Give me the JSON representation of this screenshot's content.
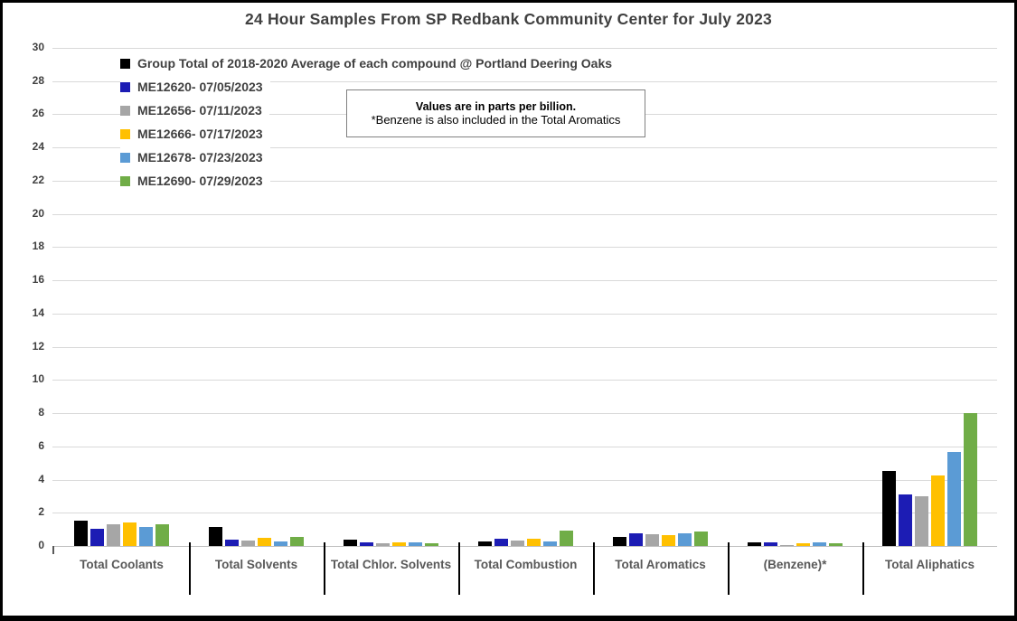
{
  "title": "24 Hour Samples From SP Redbank Community Center for July 2023",
  "note": {
    "line1": "Values are in parts per billion.",
    "line2": "*Benzene is also included in the Total Aromatics"
  },
  "colors": {
    "gridline": "#D9D9D9",
    "axis_baseline": "#BFBFBF",
    "axis_text": "#404040",
    "category_label_text": "#595959",
    "category_separator": "#000000",
    "title_text": "#404040"
  },
  "chart_data": {
    "type": "bar",
    "title": "24 Hour Samples From SP Redbank Community Center for July 2023",
    "value_unit": "parts per billion",
    "xlabel": "",
    "ylabel": "",
    "ylim": [
      0,
      30
    ],
    "ytick_step": 2,
    "grid": true,
    "legend_position": "top-left",
    "categories": [
      "Total Coolants",
      "Total Solvents",
      "Total Chlor. Solvents",
      "Total Combustion",
      "Total Aromatics",
      "(Benzene)*",
      "Total Aliphatics"
    ],
    "series": [
      {
        "name": "Group Total of 2018-2020 Average of each compound @ Portland Deering Oaks",
        "color": "#000000",
        "values": [
          1.5,
          1.15,
          0.38,
          0.28,
          0.55,
          0.2,
          4.5
        ]
      },
      {
        "name": "ME12620- 07/05/2023",
        "color": "#1C1CB4",
        "values": [
          1.05,
          0.4,
          0.2,
          0.45,
          0.78,
          0.2,
          3.1
        ]
      },
      {
        "name": "ME12656- 07/11/2023",
        "color": "#A6A6A6",
        "values": [
          1.3,
          0.35,
          0.16,
          0.35,
          0.7,
          0.08,
          3.0
        ]
      },
      {
        "name": "ME12666- 07/17/2023",
        "color": "#FFC000",
        "values": [
          1.4,
          0.5,
          0.2,
          0.42,
          0.65,
          0.15,
          4.25
        ]
      },
      {
        "name": "ME12678- 07/23/2023",
        "color": "#5B9BD5",
        "values": [
          1.15,
          0.25,
          0.22,
          0.25,
          0.75,
          0.2,
          5.65
        ]
      },
      {
        "name": "ME12690- 07/29/2023",
        "color": "#70AD47",
        "values": [
          1.3,
          0.55,
          0.17,
          0.95,
          0.85,
          0.18,
          8.0
        ]
      }
    ]
  }
}
